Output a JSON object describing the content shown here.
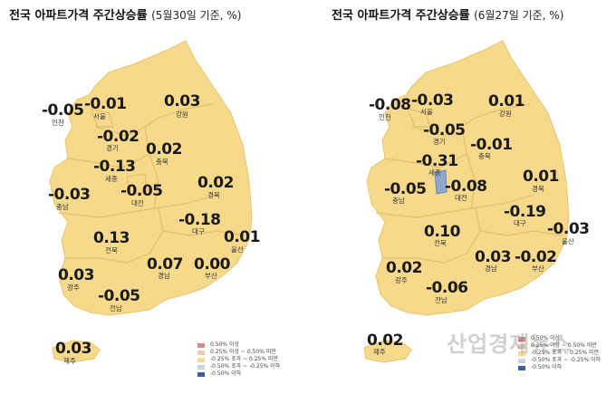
{
  "colors": {
    "land": "#f7d98b",
    "sejong_highlight": "#8ea6c9",
    "legend": [
      "#d98c8c",
      "#eec7b1",
      "#f7d98b",
      "#c9d3e6",
      "#3d5e9a"
    ]
  },
  "legend_labels": [
    "0.50% 이상",
    "0.25% 이상 ~ 0.50% 미만",
    "-0.25% 초과 ~ 0.25% 미만",
    "-0.50% 초과 ~ -0.25% 이하",
    "-0.50% 이하"
  ],
  "left": {
    "title": "전국 아파트가격 주간상승률",
    "subtitle": "(5월30일 기준, %)",
    "regions": [
      {
        "name": "인천",
        "value": "-0.05"
      },
      {
        "name": "서울",
        "value": "-0.01"
      },
      {
        "name": "강원",
        "value": "0.03"
      },
      {
        "name": "경기",
        "value": "-0.02"
      },
      {
        "name": "충북",
        "value": "0.02"
      },
      {
        "name": "세종",
        "value": "-0.13"
      },
      {
        "name": "충남",
        "value": "-0.03"
      },
      {
        "name": "대전",
        "value": "-0.05"
      },
      {
        "name": "경북",
        "value": "0.02"
      },
      {
        "name": "대구",
        "value": "-0.18"
      },
      {
        "name": "울산",
        "value": "0.01"
      },
      {
        "name": "전북",
        "value": "0.13"
      },
      {
        "name": "경남",
        "value": "0.07"
      },
      {
        "name": "부산",
        "value": "0.00"
      },
      {
        "name": "광주",
        "value": "0.03"
      },
      {
        "name": "전남",
        "value": "-0.05"
      },
      {
        "name": "제주",
        "value": "0.03"
      }
    ]
  },
  "right": {
    "title": "전국 아파트가격 주간상승률",
    "subtitle": "(6월27일 기준, %)",
    "regions": [
      {
        "name": "인천",
        "value": "-0.08"
      },
      {
        "name": "서울",
        "value": "-0.03"
      },
      {
        "name": "강원",
        "value": "0.01"
      },
      {
        "name": "경기",
        "value": "-0.05"
      },
      {
        "name": "충북",
        "value": "-0.01"
      },
      {
        "name": "세종",
        "value": "-0.31"
      },
      {
        "name": "충남",
        "value": "-0.05"
      },
      {
        "name": "대전",
        "value": "-0.08"
      },
      {
        "name": "경북",
        "value": "0.01"
      },
      {
        "name": "대구",
        "value": "-0.19"
      },
      {
        "name": "울산",
        "value": "-0.03"
      },
      {
        "name": "전북",
        "value": "0.10"
      },
      {
        "name": "경남",
        "value": "0.03"
      },
      {
        "name": "부산",
        "value": "-0.02"
      },
      {
        "name": "광주",
        "value": "0.02"
      },
      {
        "name": "전남",
        "value": "-0.06"
      },
      {
        "name": "제주",
        "value": "0.02"
      }
    ]
  },
  "watermark": "산업경제뉴스"
}
